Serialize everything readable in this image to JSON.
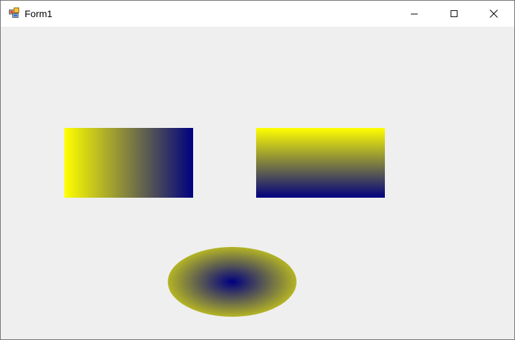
{
  "window": {
    "title": "Form1",
    "icon": "winforms-app-icon",
    "caption_buttons": [
      "minimize-icon",
      "maximize-icon",
      "close-icon"
    ]
  },
  "colors": {
    "gradient_start": "#ffff00",
    "gradient_end": "#000080",
    "client_background": "#efefef",
    "titlebar_background": "#ffffff"
  },
  "shapes": [
    {
      "kind": "rectangle",
      "gradient": "horizontal-linear"
    },
    {
      "kind": "rectangle",
      "gradient": "vertical-linear"
    },
    {
      "kind": "ellipse",
      "gradient": "radial"
    }
  ]
}
